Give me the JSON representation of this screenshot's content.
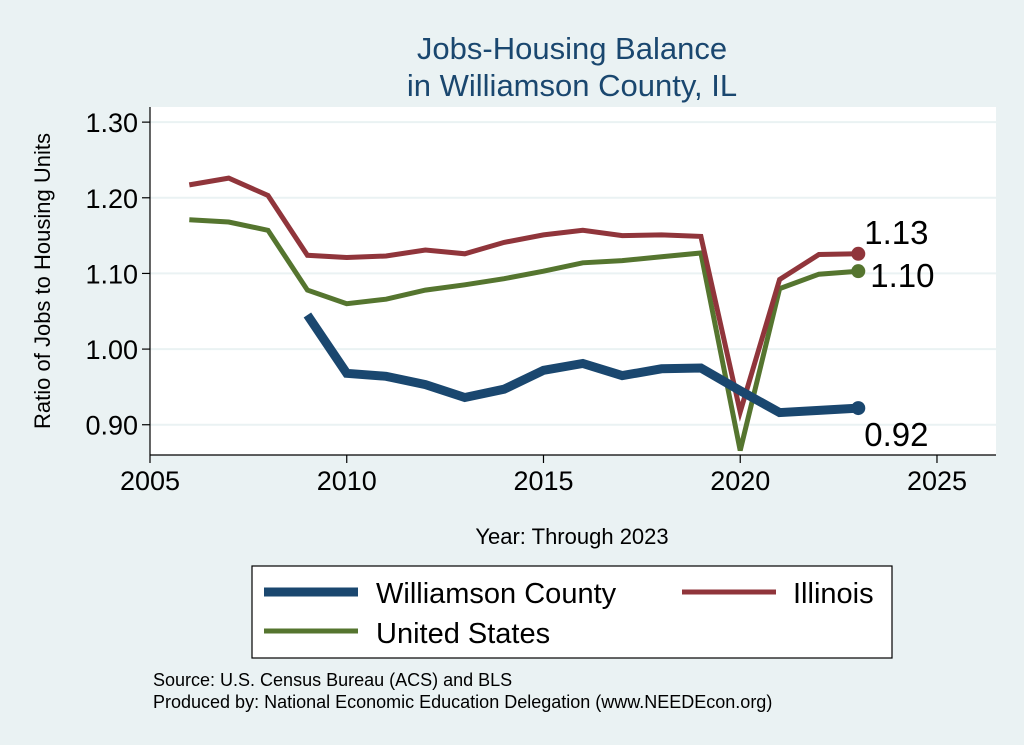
{
  "chart_data": {
    "type": "line",
    "title": [
      "Jobs-Housing Balance",
      "in Williamson County, IL"
    ],
    "xlabel": "Year: Through 2023",
    "ylabel": "Ratio of Jobs to Housing Units",
    "xlim": [
      2005,
      2026.5
    ],
    "ylim": [
      0.86,
      1.32
    ],
    "xticks": [
      2005,
      2010,
      2015,
      2020,
      2025
    ],
    "yticks": [
      0.9,
      1.0,
      1.1,
      1.2,
      1.3
    ],
    "ytick_labels": [
      "0.90",
      "1.00",
      "1.10",
      "1.20",
      "1.30"
    ],
    "grid": true,
    "series": [
      {
        "name": "Williamson County",
        "color": "#1a476f",
        "x": [
          2009,
          2010,
          2011,
          2012,
          2013,
          2014,
          2015,
          2016,
          2017,
          2018,
          2019,
          2020,
          2021,
          2022,
          2023
        ],
        "y": [
          1.045,
          0.968,
          0.964,
          0.953,
          0.936,
          0.947,
          0.972,
          0.981,
          0.965,
          0.974,
          0.975,
          0.945,
          0.916,
          0.919,
          0.922
        ],
        "end_label": "0.92"
      },
      {
        "name": "Illinois",
        "color": "#90353b",
        "x": [
          2006,
          2007,
          2008,
          2009,
          2010,
          2011,
          2012,
          2013,
          2014,
          2015,
          2016,
          2017,
          2018,
          2019,
          2020,
          2021,
          2022,
          2023
        ],
        "y": [
          1.217,
          1.226,
          1.203,
          1.124,
          1.121,
          1.123,
          1.131,
          1.126,
          1.141,
          1.151,
          1.157,
          1.15,
          1.151,
          1.149,
          0.917,
          1.092,
          1.125,
          1.126
        ],
        "end_label": "1.13"
      },
      {
        "name": "United States",
        "color": "#55752f",
        "x": [
          2006,
          2007,
          2008,
          2009,
          2010,
          2011,
          2012,
          2013,
          2014,
          2015,
          2016,
          2017,
          2018,
          2019,
          2020,
          2021,
          2022,
          2023
        ],
        "y": [
          1.171,
          1.168,
          1.157,
          1.078,
          1.06,
          1.066,
          1.078,
          1.085,
          1.093,
          1.103,
          1.114,
          1.117,
          1.122,
          1.127,
          0.866,
          1.08,
          1.099,
          1.103
        ],
        "end_label": "1.10"
      }
    ],
    "legend": {
      "position": "bottom",
      "items": [
        "Williamson County",
        "Illinois",
        "United States"
      ]
    },
    "notes": [
      "Source: U.S. Census Bureau (ACS) and BLS",
      "Produced by: National Economic Education Delegation (www.NEEDEcon.org)"
    ]
  }
}
